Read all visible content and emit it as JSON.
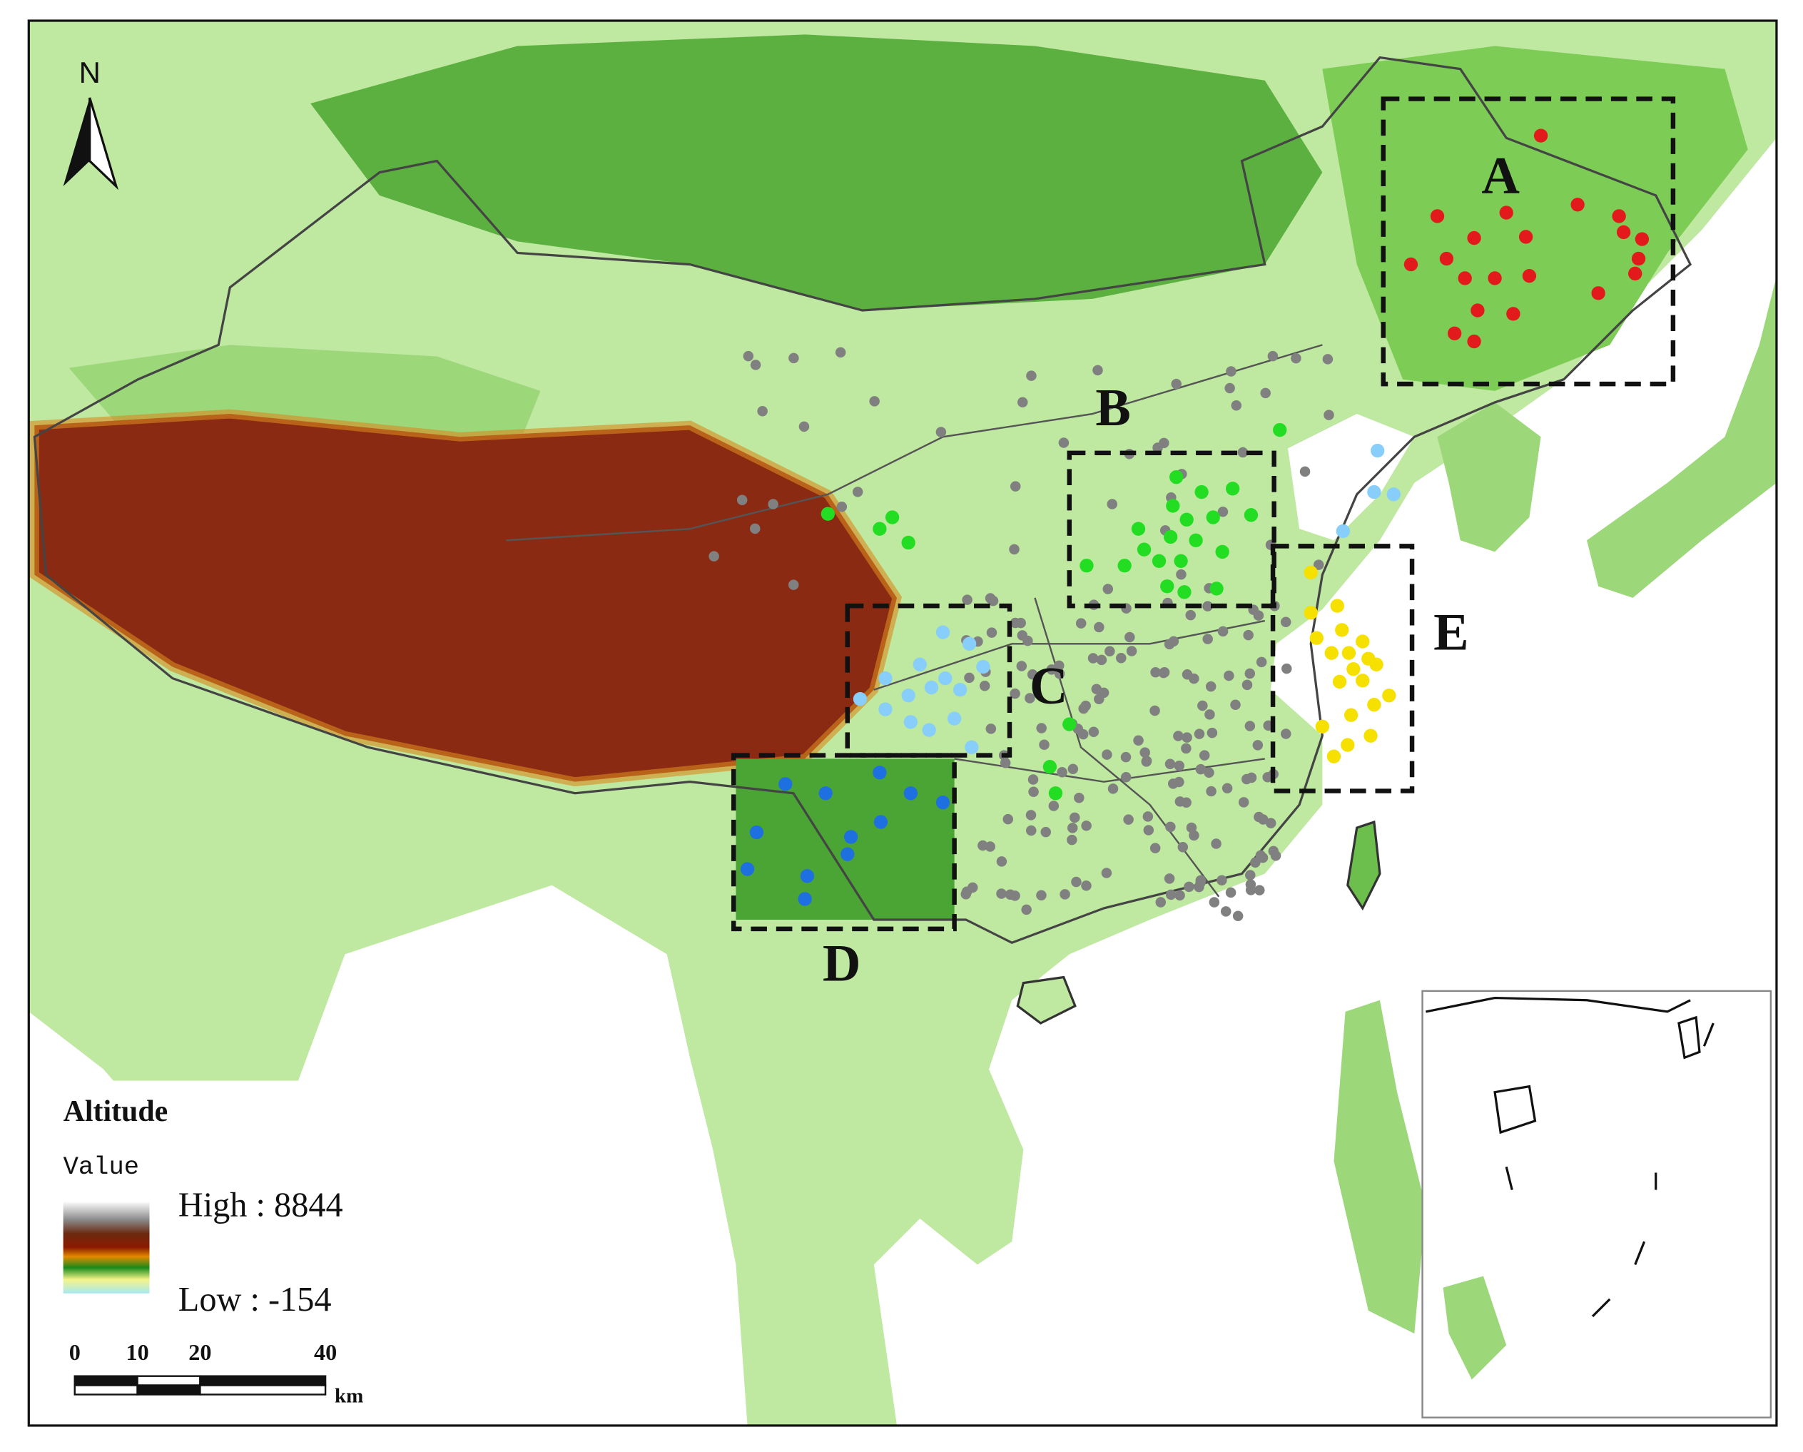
{
  "north_arrow": {
    "label": "N"
  },
  "regions": [
    {
      "label": "A"
    },
    {
      "label": "B"
    },
    {
      "label": "C"
    },
    {
      "label": "D"
    },
    {
      "label": "E"
    }
  ],
  "legend": {
    "title": "Altitude",
    "subtitle": "Value",
    "high": "High : 8844",
    "low": "Low : -154"
  },
  "scale_bar": {
    "ticks": [
      0,
      10,
      20,
      40
    ],
    "unit": "km"
  }
}
